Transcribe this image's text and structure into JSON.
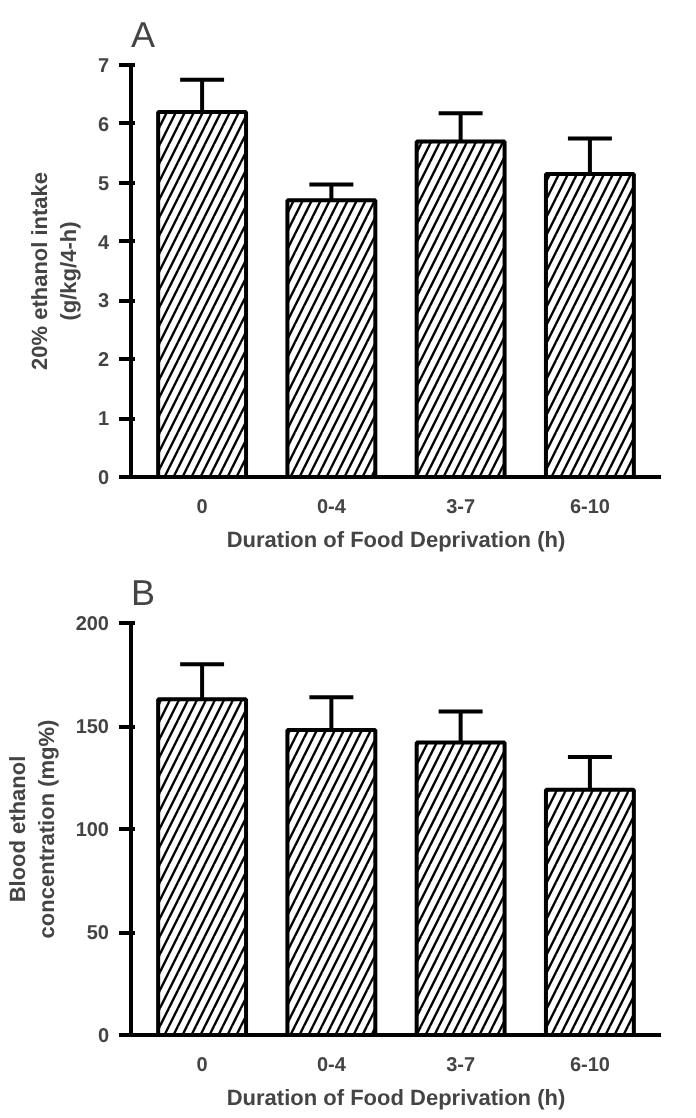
{
  "chart_data": [
    {
      "type": "bar",
      "title": "A",
      "xlabel": "Duration of Food Deprivation (h)",
      "ylabel": "20% ethanol intake\n(g/kg/4-h)",
      "categories": [
        "0",
        "0-4",
        "3-7",
        "6-10"
      ],
      "values": [
        6.2,
        4.7,
        5.7,
        5.15
      ],
      "errors": [
        0.55,
        0.27,
        0.48,
        0.6
      ],
      "color": "#ffffff",
      "ylim": [
        0,
        7
      ],
      "yticks": [
        0,
        1,
        2,
        3,
        4,
        5,
        6,
        7
      ],
      "grid": false
    },
    {
      "type": "bar",
      "title": "B",
      "xlabel": "Duration of Food Deprivation (h)",
      "ylabel": "Blood ethanol\nconcentration (mg%)",
      "categories": [
        "0",
        "0-4",
        "3-7",
        "6-10"
      ],
      "values": [
        163,
        148,
        142,
        119
      ],
      "errors": [
        17,
        16,
        15,
        16
      ],
      "color": "#ffffff",
      "ylim": [
        0,
        200
      ],
      "yticks": [
        0,
        50,
        100,
        150,
        200
      ],
      "grid": false
    }
  ]
}
